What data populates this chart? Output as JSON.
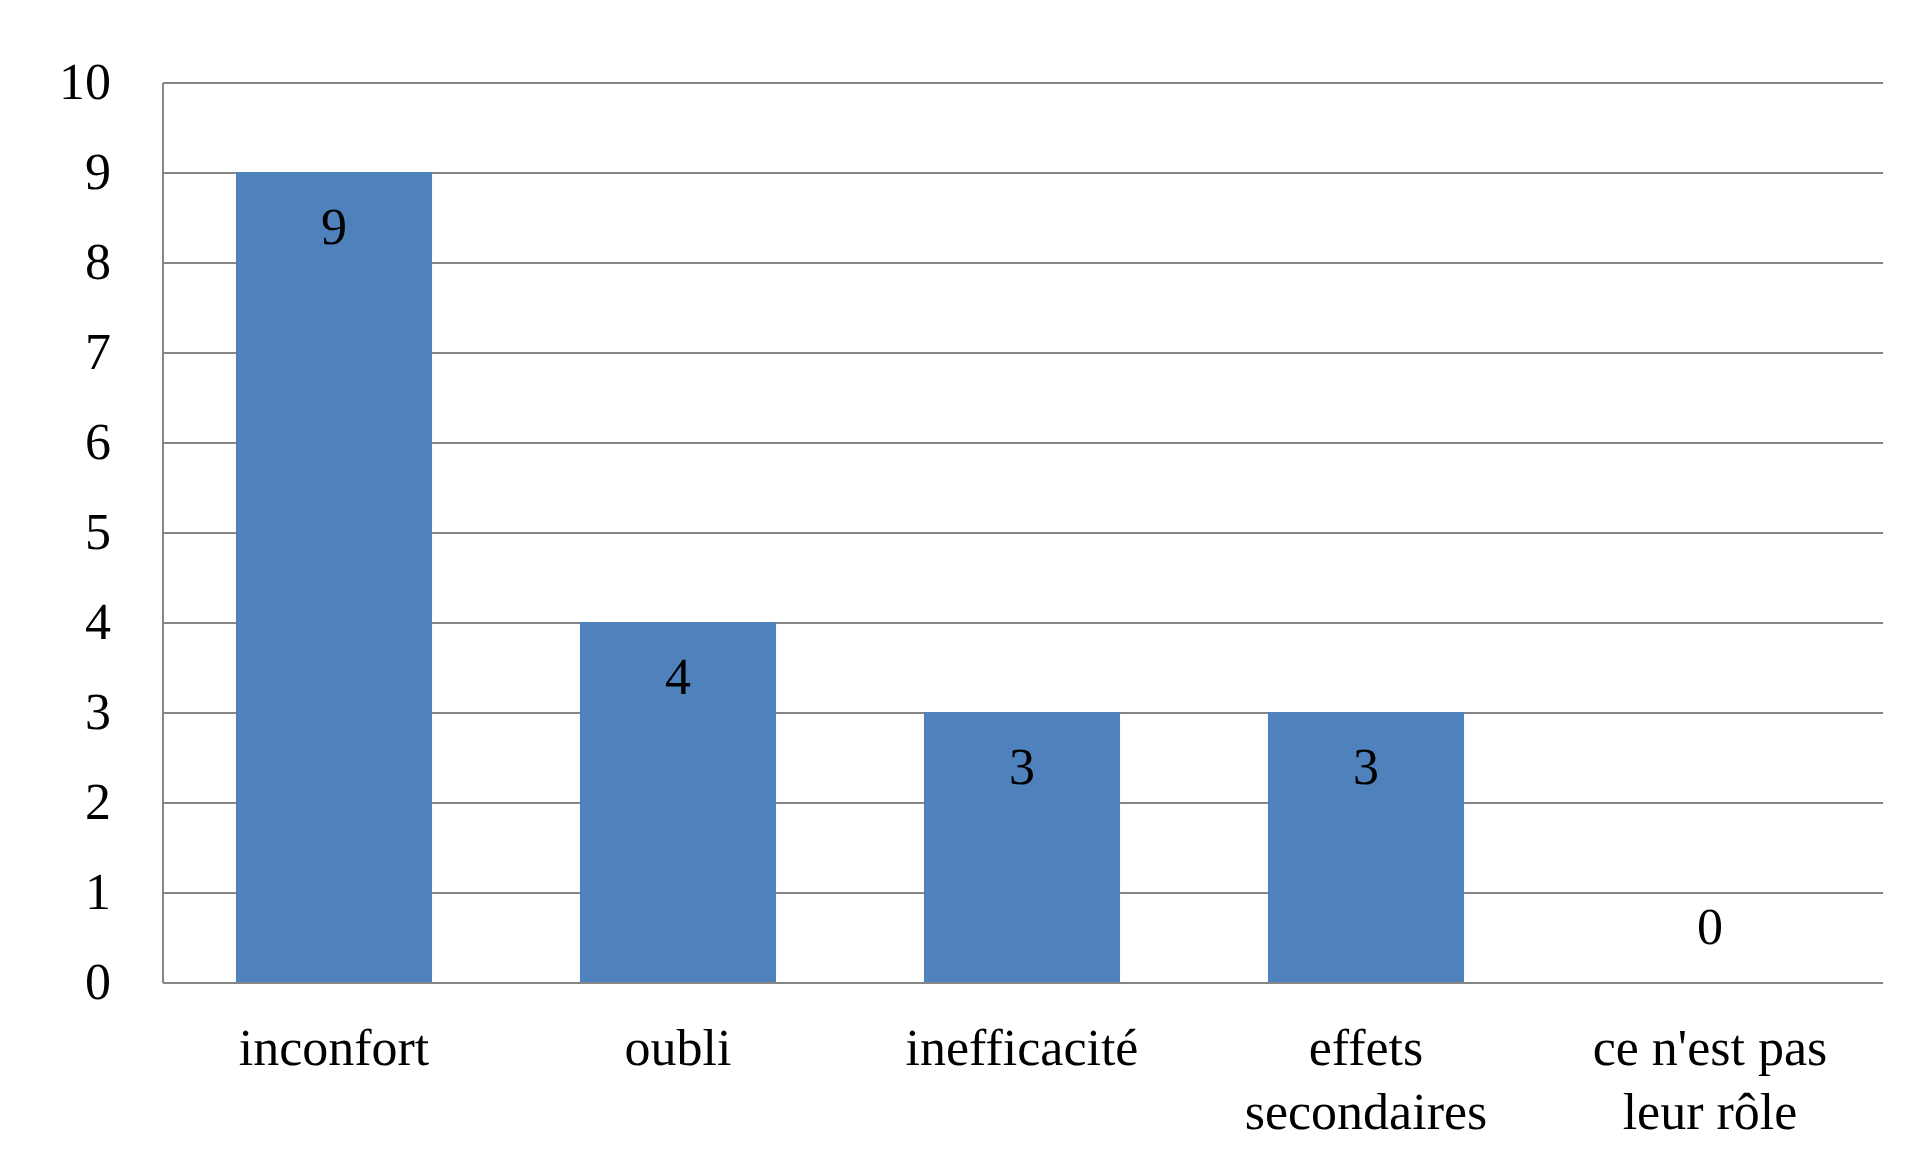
{
  "chart_data": {
    "type": "bar",
    "categories": [
      "inconfort",
      "oubli",
      "inefficacité",
      "effets secondaires",
      "ce n'est pas leur rôle"
    ],
    "values": [
      9,
      4,
      3,
      3,
      0
    ],
    "color": "#4f81bd",
    "ylim": [
      0,
      10
    ],
    "yticks": [
      0,
      1,
      2,
      3,
      4,
      5,
      6,
      7,
      8,
      9,
      10
    ],
    "grid": "y",
    "data_labels": true
  }
}
